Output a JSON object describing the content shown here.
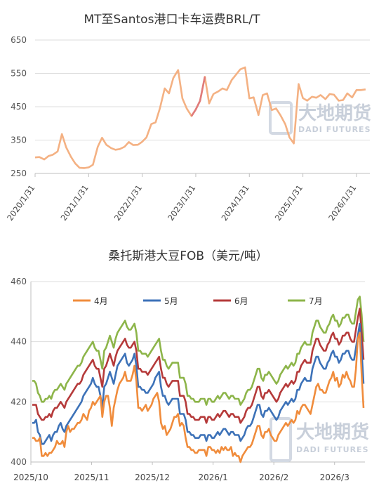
{
  "chart_data": [
    {
      "type": "line",
      "title": "MT至Santos港口卡车运费BRL/T",
      "xlabel": "",
      "ylabel": "",
      "ylim": [
        250,
        650
      ],
      "yticks": [
        250,
        350,
        450,
        550,
        650
      ],
      "xticks": [
        "2020/1/31",
        "2021/1/31",
        "2022/1/31",
        "2023/1/31",
        "2024/1/31",
        "2025/1/31",
        "2026/1/31"
      ],
      "grid": "y",
      "legend": "none",
      "x_range": [
        2020.0,
        2026.25
      ],
      "colors": {
        "main": "#f4b183",
        "highlight": "#e07b7b",
        "grid": "#dddddd"
      },
      "series": [
        {
          "points": [
            [
              2020.0,
              298
            ],
            [
              2020.08,
              299
            ],
            [
              2020.17,
              292
            ],
            [
              2020.25,
              302
            ],
            [
              2020.33,
              306
            ],
            [
              2020.42,
              316
            ],
            [
              2020.5,
              368
            ],
            [
              2020.58,
              328
            ],
            [
              2020.67,
              300
            ],
            [
              2020.75,
              280
            ],
            [
              2020.83,
              267
            ],
            [
              2020.92,
              266
            ],
            [
              2021.0,
              268
            ],
            [
              2021.08,
              276
            ],
            [
              2021.17,
              330
            ],
            [
              2021.25,
              357
            ],
            [
              2021.33,
              336
            ],
            [
              2021.42,
              326
            ],
            [
              2021.5,
              321
            ],
            [
              2021.58,
              323
            ],
            [
              2021.67,
              330
            ],
            [
              2021.75,
              344
            ],
            [
              2021.83,
              335
            ],
            [
              2021.92,
              336
            ],
            [
              2022.0,
              345
            ],
            [
              2022.08,
              358
            ],
            [
              2022.17,
              398
            ],
            [
              2022.25,
              403
            ],
            [
              2022.33,
              445
            ],
            [
              2022.42,
              505
            ],
            [
              2022.5,
              490
            ],
            [
              2022.58,
              536
            ],
            [
              2022.67,
              560
            ],
            [
              2022.75,
              475
            ],
            [
              2022.83,
              445
            ],
            [
              2022.92,
              422
            ],
            [
              2023.0,
              442
            ],
            [
              2023.08,
              468
            ],
            [
              2023.17,
              540
            ],
            [
              2023.25,
              460
            ],
            [
              2023.33,
              488
            ],
            [
              2023.42,
              496
            ],
            [
              2023.5,
              505
            ],
            [
              2023.58,
              500
            ],
            [
              2023.67,
              530
            ],
            [
              2023.75,
              546
            ],
            [
              2023.83,
              562
            ],
            [
              2023.92,
              568
            ],
            [
              2024.0,
              475
            ],
            [
              2024.08,
              478
            ],
            [
              2024.17,
              425
            ],
            [
              2024.25,
              485
            ],
            [
              2024.33,
              490
            ],
            [
              2024.42,
              440
            ],
            [
              2024.5,
              445
            ],
            [
              2024.58,
              425
            ],
            [
              2024.67,
              398
            ],
            [
              2024.75,
              358
            ],
            [
              2024.83,
              340
            ],
            [
              2024.92,
              518
            ],
            [
              2025.0,
              476
            ],
            [
              2025.08,
              468
            ],
            [
              2025.17,
              480
            ],
            [
              2025.25,
              477
            ],
            [
              2025.33,
              485
            ],
            [
              2025.42,
              473
            ],
            [
              2025.5,
              488
            ],
            [
              2025.58,
              486
            ],
            [
              2025.67,
              468
            ],
            [
              2025.75,
              470
            ],
            [
              2025.83,
              490
            ],
            [
              2025.92,
              478
            ],
            [
              2026.0,
              500
            ],
            [
              2026.08,
              500
            ],
            [
              2026.17,
              502
            ]
          ]
        }
      ],
      "highlight_segment": {
        "x_from": 2022.92,
        "x_to": 2023.17
      }
    },
    {
      "type": "line",
      "title": "桑托斯港大豆FOB（美元/吨）",
      "xlabel": "",
      "ylabel": "",
      "ylim": [
        400,
        460
      ],
      "yticks": [
        400,
        420,
        440,
        460
      ],
      "xticks": [
        "2025/10",
        "2025/11",
        "2025/12",
        "2026/1",
        "2026/2",
        "2026/3"
      ],
      "grid": "y",
      "legend": "top",
      "series": [
        {
          "name": "4月",
          "color": "#f08c3c",
          "values": [
            408,
            408,
            407,
            407,
            408,
            402,
            402,
            403,
            402,
            403,
            403,
            404,
            405,
            407,
            406,
            406,
            407,
            405,
            410,
            412,
            410,
            411,
            411,
            412,
            413,
            413,
            414,
            416,
            415,
            414,
            417,
            418,
            420,
            419,
            420,
            421,
            422,
            415,
            420,
            422,
            422,
            418,
            412,
            418,
            421,
            424,
            426,
            427,
            428,
            430,
            427,
            427,
            427,
            429,
            432,
            427,
            418,
            418,
            417,
            418,
            419,
            417,
            418,
            419,
            421,
            422,
            423,
            420,
            413,
            411,
            412,
            409,
            410,
            411,
            413,
            415,
            415,
            416,
            412,
            413,
            412,
            408,
            405,
            405,
            404,
            404,
            403,
            403,
            404,
            404,
            404,
            404,
            402,
            405,
            405,
            404,
            404,
            403,
            404,
            403,
            405,
            404,
            405,
            404,
            404,
            405,
            402,
            403,
            402,
            402,
            400,
            402,
            403,
            404,
            405,
            405,
            406,
            408,
            410,
            412,
            412,
            409,
            408,
            410,
            410,
            411,
            409,
            408,
            407,
            407,
            409,
            410,
            411,
            412,
            413,
            412,
            413,
            414,
            413,
            414,
            417,
            416,
            418,
            419,
            419,
            418,
            417,
            416,
            419,
            422,
            425,
            426,
            424,
            424,
            423,
            423,
            425,
            427,
            428,
            430,
            427,
            428,
            425,
            426,
            429,
            428,
            430,
            428,
            427,
            425,
            425,
            431,
            441,
            443,
            429,
            418
          ]
        },
        {
          "name": "5月",
          "color": "#3d72b8",
          "values": [
            413,
            413,
            414,
            410,
            409,
            406,
            406,
            407,
            408,
            409,
            407,
            409,
            410,
            410,
            412,
            413,
            411,
            410,
            412,
            413,
            414,
            415,
            416,
            417,
            418,
            419,
            420,
            422,
            423,
            424,
            425,
            426,
            428,
            426,
            425,
            425,
            422,
            418,
            425,
            426,
            428,
            430,
            428,
            426,
            429,
            432,
            433,
            434,
            435,
            436,
            433,
            432,
            433,
            434,
            436,
            432,
            425,
            425,
            424,
            424,
            423,
            423,
            424,
            425,
            426,
            428,
            429,
            430,
            425,
            422,
            422,
            420,
            419,
            420,
            421,
            421,
            421,
            421,
            416,
            416,
            416,
            414,
            410,
            410,
            409,
            409,
            408,
            408,
            408,
            409,
            409,
            409,
            407,
            409,
            409,
            408,
            408,
            409,
            410,
            409,
            410,
            411,
            411,
            410,
            409,
            410,
            410,
            409,
            409,
            409,
            407,
            408,
            409,
            411,
            412,
            412,
            413,
            415,
            417,
            419,
            419,
            416,
            415,
            417,
            417,
            418,
            417,
            416,
            415,
            414,
            415,
            417,
            418,
            419,
            420,
            419,
            420,
            421,
            420,
            421,
            424,
            424,
            426,
            427,
            428,
            427,
            427,
            427,
            431,
            433,
            435,
            435,
            433,
            432,
            431,
            431,
            433,
            434,
            436,
            437,
            435,
            435,
            433,
            434,
            436,
            436,
            437,
            437,
            435,
            434,
            434,
            438,
            442,
            446,
            437,
            426
          ]
        },
        {
          "name": "6月",
          "color": "#b53a3a",
          "values": [
            419,
            419,
            419,
            416,
            415,
            414,
            414,
            415,
            415,
            416,
            415,
            417,
            418,
            418,
            419,
            420,
            419,
            418,
            420,
            421,
            422,
            423,
            424,
            425,
            426,
            426,
            427,
            429,
            430,
            431,
            432,
            433,
            434,
            432,
            431,
            431,
            428,
            425,
            431,
            432,
            434,
            436,
            434,
            432,
            435,
            437,
            438,
            439,
            440,
            441,
            439,
            438,
            438,
            439,
            440,
            437,
            431,
            431,
            430,
            430,
            430,
            429,
            430,
            431,
            432,
            433,
            434,
            435,
            431,
            428,
            428,
            426,
            425,
            426,
            427,
            427,
            427,
            427,
            422,
            422,
            422,
            420,
            416,
            416,
            415,
            415,
            414,
            414,
            414,
            415,
            415,
            415,
            413,
            415,
            415,
            414,
            414,
            415,
            416,
            415,
            416,
            417,
            417,
            416,
            415,
            416,
            416,
            415,
            415,
            415,
            413,
            414,
            415,
            417,
            418,
            418,
            419,
            421,
            423,
            425,
            425,
            422,
            421,
            423,
            423,
            424,
            423,
            422,
            421,
            420,
            421,
            423,
            424,
            425,
            426,
            425,
            426,
            427,
            426,
            427,
            430,
            430,
            432,
            433,
            434,
            433,
            433,
            433,
            437,
            439,
            441,
            441,
            439,
            438,
            437,
            437,
            439,
            440,
            442,
            443,
            441,
            441,
            439,
            440,
            442,
            442,
            443,
            443,
            441,
            440,
            440,
            444,
            448,
            451,
            443,
            434
          ]
        },
        {
          "name": "7月",
          "color": "#8db54a",
          "values": [
            427,
            427,
            426,
            423,
            422,
            420,
            420,
            421,
            421,
            422,
            421,
            423,
            424,
            424,
            425,
            426,
            425,
            424,
            426,
            427,
            428,
            429,
            430,
            431,
            432,
            432,
            433,
            435,
            436,
            437,
            438,
            439,
            440,
            438,
            437,
            437,
            434,
            431,
            437,
            438,
            440,
            442,
            440,
            438,
            441,
            443,
            444,
            445,
            446,
            447,
            445,
            444,
            444,
            445,
            446,
            443,
            437,
            437,
            436,
            436,
            436,
            435,
            436,
            437,
            438,
            439,
            440,
            441,
            437,
            434,
            434,
            432,
            431,
            432,
            433,
            433,
            433,
            433,
            428,
            428,
            428,
            426,
            422,
            422,
            421,
            421,
            420,
            420,
            420,
            421,
            421,
            421,
            419,
            421,
            421,
            420,
            420,
            421,
            422,
            421,
            422,
            423,
            423,
            422,
            421,
            422,
            422,
            421,
            421,
            421,
            419,
            420,
            421,
            423,
            424,
            424,
            425,
            427,
            429,
            431,
            431,
            428,
            427,
            429,
            429,
            430,
            429,
            428,
            427,
            426,
            427,
            429,
            430,
            431,
            432,
            431,
            432,
            433,
            432,
            433,
            436,
            436,
            438,
            439,
            440,
            439,
            439,
            439,
            443,
            445,
            447,
            447,
            445,
            444,
            443,
            443,
            445,
            446,
            448,
            449,
            447,
            447,
            445,
            446,
            448,
            448,
            449,
            449,
            447,
            446,
            446,
            450,
            454,
            455,
            449,
            440
          ]
        }
      ]
    }
  ],
  "watermark": {
    "cn": "大地期货",
    "en": "DADI FUTURES"
  }
}
